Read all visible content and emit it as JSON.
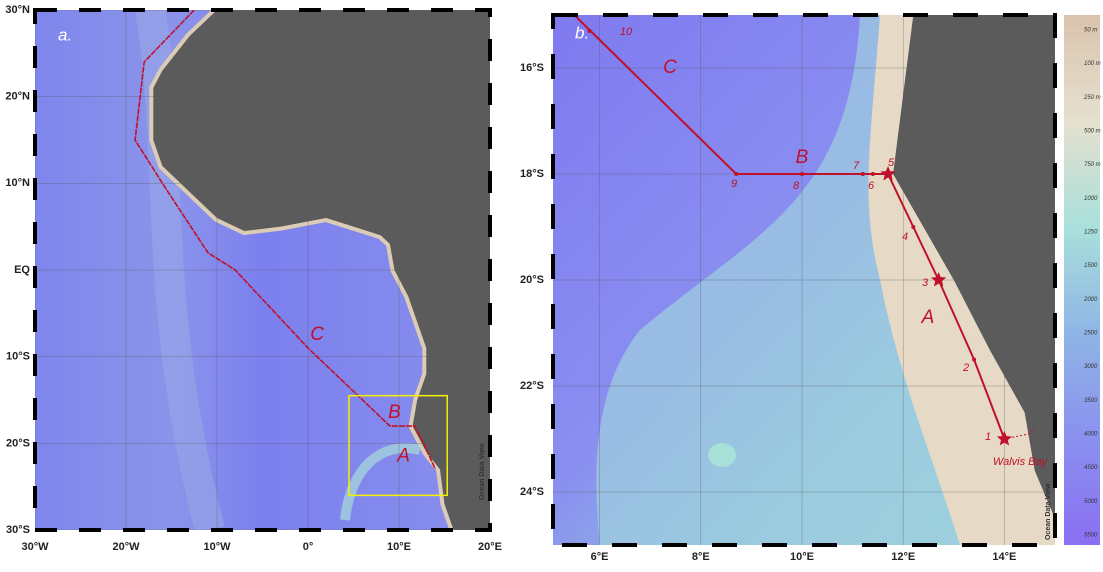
{
  "panels": [
    {
      "label": "a.",
      "lon_ticks": [
        "30°W",
        "20°W",
        "10°W",
        "0°",
        "10°E",
        "20°E"
      ],
      "lat_ticks": [
        "30°N",
        "20°N",
        "10°N",
        "EQ",
        "10°S",
        "20°S",
        "30°S"
      ],
      "section_labels": [
        "C",
        "B",
        "A"
      ],
      "watermark": "Ocean Data View"
    },
    {
      "label": "b.",
      "lon_ticks": [
        "6°E",
        "8°E",
        "10°E",
        "12°E",
        "14°E"
      ],
      "lat_ticks": [
        "16°S",
        "18°S",
        "20°S",
        "22°S",
        "24°S"
      ],
      "section_labels": [
        "C",
        "B",
        "A"
      ],
      "stations": [
        "1",
        "2",
        "3",
        "4",
        "5",
        "6",
        "7",
        "8",
        "9",
        "10"
      ],
      "place_label": "Walvis Bay",
      "watermark": "Ocean Data View"
    }
  ],
  "colorbar": {
    "labels": [
      "50 m",
      "100 m",
      "250 m",
      "500 m",
      "750 m",
      "1000",
      "1250",
      "1500",
      "2000",
      "2500",
      "3000",
      "3500",
      "4000",
      "4500",
      "5000",
      "5500"
    ]
  }
}
